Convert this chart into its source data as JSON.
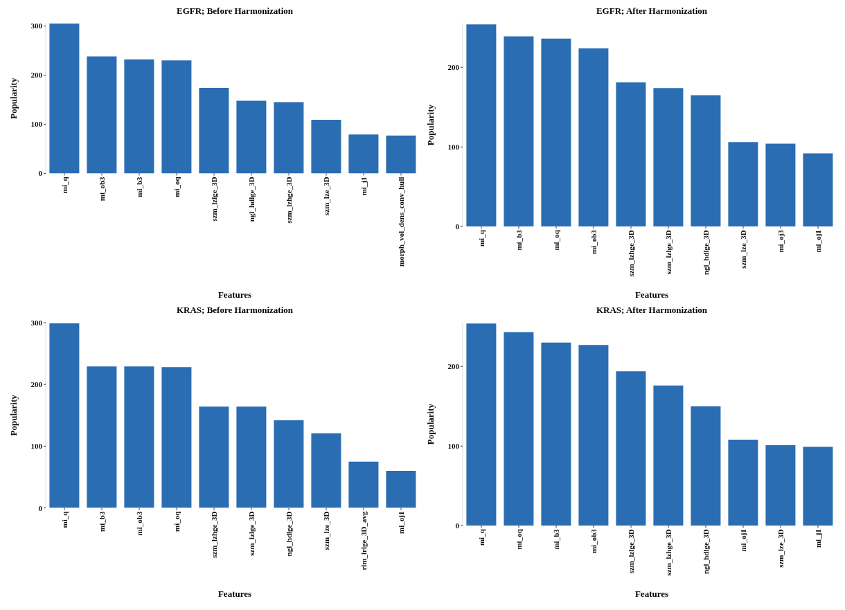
{
  "chart_data": [
    {
      "type": "bar",
      "title": "EGFR; Before Harmonization",
      "xlabel": "Features",
      "ylabel": "Popularity",
      "color": "#2a6db3",
      "grid": false,
      "ylim": [
        0,
        305
      ],
      "yticks": [
        0,
        100,
        200,
        300
      ],
      "categories": [
        "mi_q",
        "mi_ob3",
        "mi_b3",
        "mi_oq",
        "szm_lzlge_3D",
        "ngl_hdlge_3D",
        "szm_lzhge_3D",
        "szm_lze_3D",
        "mi_j1",
        "morph_vol_dens_conv_hull"
      ],
      "values": [
        305,
        238,
        232,
        230,
        174,
        148,
        145,
        109,
        79,
        77
      ]
    },
    {
      "type": "bar",
      "title": "EGFR; After Harmonization",
      "xlabel": "Features",
      "ylabel": "Popularity",
      "color": "#2a6db3",
      "grid": false,
      "ylim": [
        0,
        255
      ],
      "yticks": [
        0,
        100,
        200
      ],
      "categories": [
        "mi_q",
        "mi_b3",
        "mi_oq",
        "mi_ob3",
        "szm_lzhge_3D",
        "szm_lzlge_3D",
        "ngl_hdlge_3D",
        "szm_lze_3D",
        "mi_oj3",
        "mi_oj1"
      ],
      "values": [
        254,
        239,
        236,
        224,
        181,
        174,
        165,
        106,
        104,
        92
      ]
    },
    {
      "type": "bar",
      "title": "KRAS; Before Harmonization",
      "xlabel": "Features",
      "ylabel": "Popularity",
      "color": "#2a6db3",
      "grid": false,
      "ylim": [
        0,
        300
      ],
      "yticks": [
        0,
        100,
        200,
        300
      ],
      "categories": [
        "mi_q",
        "mi_b3",
        "mi_ob3",
        "mi_oq",
        "szm_lzhge_3D",
        "szm_lzlge_3D",
        "ngl_hdlge_3D",
        "szm_lze_3D",
        "rlm_lrlge_3D_avg",
        "mi_oj1"
      ],
      "values": [
        299,
        229,
        229,
        228,
        164,
        164,
        142,
        121,
        75,
        60
      ]
    },
    {
      "type": "bar",
      "title": "KRAS; After Harmonization",
      "xlabel": "Features",
      "ylabel": "Popularity",
      "color": "#2a6db3",
      "grid": false,
      "ylim": [
        0,
        255
      ],
      "yticks": [
        0,
        100,
        200
      ],
      "categories": [
        "mi_q",
        "mi_oq",
        "mi_b3",
        "mi_ob3",
        "szm_lzlge_3D",
        "szm_lzhge_3D",
        "ngl_hdlge_3D",
        "mi_oj1",
        "szm_lze_3D",
        "mi_j1"
      ],
      "values": [
        254,
        243,
        230,
        227,
        194,
        176,
        150,
        108,
        101,
        99
      ]
    }
  ]
}
